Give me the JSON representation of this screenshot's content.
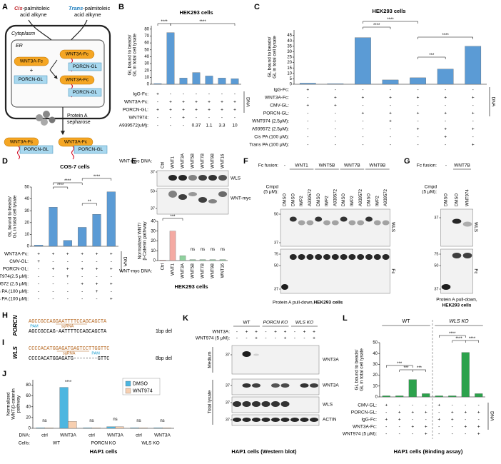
{
  "figure": {
    "A": {
      "label": "A",
      "cis": "Cis",
      "trans": "Trans",
      "pa": "-palmitoleic",
      "alkyne": "acid alkyne",
      "cytoplasm": "Cytoplasm",
      "er": "ER",
      "wnt": "WNT3A-Fc",
      "porcn": "PORCN-GL",
      "plus": "+",
      "protein_a": "Protein A",
      "sepharose": "sepharose"
    },
    "B": {
      "label": "B",
      "title": "HEK293 cells",
      "ylabel": [
        "GL bound to beads/",
        "GL in total cell lysate"
      ],
      "ylim": [
        0,
        85
      ],
      "yticks": [
        0,
        10,
        20,
        30,
        40,
        50,
        60,
        70,
        80
      ],
      "values": [
        1,
        75,
        9,
        17,
        12,
        9,
        8
      ],
      "color": "#5b9bd5",
      "rows": [
        {
          "label": "IgG-Fc:",
          "cells": [
            "+",
            "-",
            "-",
            "-",
            "-",
            "-",
            "-"
          ]
        },
        {
          "label": "WNT3A-Fc:",
          "cells": [
            "-",
            "+",
            "+",
            "+",
            "+",
            "+",
            "+"
          ]
        },
        {
          "label": "PORCN-GL:",
          "cells": [
            "+",
            "+",
            "+",
            "+",
            "+",
            "+",
            "+"
          ]
        },
        {
          "label": "WNT974:",
          "cells": [
            "-",
            "-",
            "+",
            "-",
            "-",
            "-",
            "-"
          ]
        },
        {
          "label": "A939572(uM):",
          "cells": [
            "-",
            "-",
            "-",
            "0.37",
            "1.1",
            "3.3",
            "10"
          ]
        }
      ],
      "sig": [
        "****",
        "****"
      ],
      "side": "DNA"
    },
    "C": {
      "label": "C",
      "title": "HEK293 cells",
      "ylabel": [
        "GL bound to beads/",
        "GL in total cell lysate"
      ],
      "ylim": [
        0,
        50
      ],
      "yticks": [
        0,
        5,
        10,
        15,
        20,
        25,
        30,
        35,
        40,
        45
      ],
      "values": [
        1,
        0.5,
        43,
        4,
        6,
        14,
        35
      ],
      "color": "#5b9bd5",
      "rows": [
        {
          "label": "IgG-Fc:",
          "cells": [
            "+",
            "-",
            "-",
            "-",
            "-",
            "-",
            "-"
          ]
        },
        {
          "label": "WNT3A-Fc:",
          "cells": [
            "-",
            "+",
            "+",
            "+",
            "+",
            "+",
            "+"
          ]
        },
        {
          "label": "CMV-GL:",
          "cells": [
            "+",
            "+",
            "-",
            "-",
            "-",
            "-",
            "-"
          ]
        },
        {
          "label": "PORCN-GL:",
          "cells": [
            "-",
            "-",
            "+",
            "+",
            "+",
            "+",
            "+"
          ]
        },
        {
          "label": "WNT974 (2.5μM):",
          "cells": [
            "-",
            "-",
            "-",
            "+",
            "-",
            "-",
            "-"
          ]
        },
        {
          "label": "A939572 (2.5μM):",
          "cells": [
            "-",
            "-",
            "-",
            "-",
            "+",
            "+",
            "+"
          ]
        },
        {
          "label": "Cis PA (100 μM):",
          "cells": [
            "-",
            "-",
            "-",
            "-",
            "-",
            "+",
            "-"
          ]
        },
        {
          "label": "Trans PA (100 μM):",
          "cells": [
            "-",
            "-",
            "-",
            "-",
            "-",
            "-",
            "+"
          ]
        }
      ],
      "sig": [
        "****",
        "****",
        "***",
        "****"
      ],
      "side": "DNA"
    },
    "D": {
      "label": "D",
      "title": "COS-7 cells",
      "ylabel": [
        "GL bound to beads/",
        "GL in total cell lysate"
      ],
      "ylim": [
        0,
        50
      ],
      "yticks": [
        0,
        10,
        20,
        30,
        40,
        50
      ],
      "values": [
        1,
        33,
        5,
        16,
        27,
        46
      ],
      "color": "#5b9bd5",
      "rows": [
        {
          "label": "WNT3A-Fc:",
          "cells": [
            "+",
            "+",
            "+",
            "+",
            "+",
            "+"
          ]
        },
        {
          "label": "CMV-GL:",
          "cells": [
            "+",
            "-",
            "-",
            "-",
            "-",
            "-"
          ]
        },
        {
          "label": "PORCN-GL:",
          "cells": [
            "-",
            "+",
            "+",
            "+",
            "+",
            "+"
          ]
        },
        {
          "label": "WNT974(2.5 μM):",
          "cells": [
            "-",
            "-",
            "+",
            "-",
            "-",
            "-"
          ]
        },
        {
          "label": "A939572 (2.5 μM):",
          "cells": [
            "-",
            "-",
            "-",
            "+",
            "+",
            "+"
          ]
        },
        {
          "label": "cis PA (100 μM):",
          "cells": [
            "-",
            "-",
            "-",
            "-",
            "+",
            "-"
          ]
        },
        {
          "label": "trans PA (100 μM):",
          "cells": [
            "-",
            "-",
            "-",
            "-",
            "-",
            "+"
          ]
        }
      ],
      "sig": [
        "****",
        "****",
        "**",
        "****"
      ],
      "side": "DNA"
    },
    "E": {
      "label": "E",
      "lane_title": "WNT-myc DNA:",
      "categories": [
        "Ctrl",
        "WNT1",
        "WNT3A",
        "WNT5B",
        "WNT7B",
        "WNT9B",
        "WNT16"
      ],
      "markers": [
        37,
        50,
        37
      ],
      "blots": [
        "WLS",
        "WNT-myc"
      ],
      "ylabel": [
        "Normalized WNT/",
        "β-Catenin pathway"
      ],
      "ylim": [
        0,
        40
      ],
      "yticks": [
        0,
        10,
        20,
        30,
        40
      ],
      "values": [
        0.5,
        30,
        5,
        1,
        1,
        1,
        1
      ],
      "colors": [
        "#f4aaa3",
        "#f4aaa3",
        "#8fd19e",
        "#8fd19e",
        "#8fd19e",
        "#8fd19e",
        "#8fd19e"
      ],
      "sig": [
        "***",
        "ns",
        "ns",
        "ns",
        "ns"
      ],
      "cells": "HEK293 cells"
    },
    "F": {
      "label": "F",
      "fusion_title": "Fc fusion:",
      "fusions": [
        "-",
        "WNT1",
        "WNT5B",
        "WNT7B",
        "WNT9B"
      ],
      "cmpd_title": [
        "Cmpd",
        "(5 μM):"
      ],
      "cmpd": [
        "DMSO",
        "DMSO",
        "IWP2",
        "A939572",
        "DMSO",
        "IWP2",
        "A939572",
        "DMSO",
        "IWP2",
        "A939572",
        "DMSO",
        "IWP2",
        "A939572"
      ],
      "markers": [
        50,
        37,
        75,
        50,
        37
      ],
      "blots": [
        "WLS",
        "Fc"
      ],
      "caption": "Protein A pull-down, ",
      "caption_bold": "HEK293 cells"
    },
    "G": {
      "label": "G",
      "fusion_title": "Fc fusion:",
      "fusions": [
        "-",
        "WNT7B"
      ],
      "cmpd_title": [
        "Cmpd",
        "(5 μM):"
      ],
      "cmpd": [
        "DMSO",
        "DMSO",
        "WNT974"
      ],
      "markers": [
        37,
        75,
        50,
        37
      ],
      "blots": [
        "WLS",
        "Fc"
      ],
      "caption": "Protein A pull-down,",
      "caption_bold": "HEK293 cells"
    },
    "H": {
      "label": "H",
      "gene": "PORCN",
      "wt": "AGCCGCCAGGAATTTTCCAGCAGCTA",
      "mut": "AGCCGCCAG-AATTTTCCAGCAGCTA",
      "pam": "PAM",
      "sgrna": "sgRNA",
      "del": "1bp del"
    },
    "I": {
      "label": "I",
      "gene": "WLS",
      "wt": "CCCCACATGGAGATGAGTCCTTGGTTC",
      "mut": "CCCCACATGGAGATG--------GTTC",
      "pam": "PAM",
      "sgrna": "sgRNA",
      "del": "8bp del"
    },
    "J": {
      "label": "J",
      "ylabel": [
        "Normalized",
        "WNT/β-catenin",
        "pathway"
      ],
      "ylim": [
        0,
        90
      ],
      "yticks": [
        0,
        20,
        40,
        60,
        80
      ],
      "categories": [
        "ctrl",
        "WNT3A",
        "ctrl",
        "WNT3A",
        "ctrl",
        "WNT3A"
      ],
      "series": [
        {
          "name": "DMSO",
          "color": "#4db6e0",
          "values": [
            1,
            76,
            1,
            3,
            1,
            1
          ]
        },
        {
          "name": "WNT974",
          "color": "#f7cfb0",
          "values": [
            1,
            13,
            1,
            3,
            1,
            1
          ]
        }
      ],
      "dna": "DNA:",
      "cells_title": "Cells:",
      "groups": [
        "WT",
        "PORCN KO",
        "WLS KO"
      ],
      "sig": [
        "ns",
        "****",
        "ns",
        "ns",
        "ns",
        "ns"
      ],
      "caption": "HAP1 cells"
    },
    "K": {
      "label": "K",
      "groups": [
        "WT",
        "PORCN KO",
        "WLS KO"
      ],
      "rows": [
        {
          "label": "WNT3A:",
          "cells": [
            "-",
            "+",
            "+",
            "-",
            "+",
            "+",
            "-",
            "+",
            "+"
          ]
        },
        {
          "label": "WNT974 (5 μM):",
          "cells": [
            "-",
            "-",
            "+",
            "-",
            "-",
            "+",
            "-",
            "-",
            "+"
          ]
        }
      ],
      "sections": [
        "Medium",
        "Total lysate"
      ],
      "blots": [
        "WNT3A",
        "WNT3A",
        "WLS",
        "ACTIN"
      ],
      "markers": [
        37,
        37,
        37,
        37
      ],
      "caption": "HAP1 cells (Western blot)"
    },
    "L": {
      "label": "L",
      "ylabel": [
        "GL bound to beads/",
        "GL in total cell lysate"
      ],
      "ylim": [
        0,
        50
      ],
      "yticks": [
        0,
        10,
        20,
        30,
        40,
        50
      ],
      "values": [
        1,
        1,
        16,
        3,
        1,
        1,
        41,
        3
      ],
      "color": "#2ca24c",
      "groups": [
        "WT",
        "WLS KO"
      ],
      "rows": [
        {
          "label": "CMV-GL:",
          "cells": [
            "+",
            "-",
            "-",
            "-",
            "+",
            "-",
            "-",
            "-"
          ]
        },
        {
          "label": "PORCN-GL:",
          "cells": [
            "-",
            "+",
            "+",
            "+",
            "-",
            "+",
            "+",
            "+"
          ]
        },
        {
          "label": "IgG-Fc:",
          "cells": [
            "+",
            "+",
            "-",
            "-",
            "+",
            "+",
            "-",
            "-"
          ]
        },
        {
          "label": "WNT3A-Fc:",
          "cells": [
            "-",
            "-",
            "+",
            "+",
            "-",
            "-",
            "+",
            "+"
          ]
        },
        {
          "label": "WNT974 (5 μM):",
          "cells": [
            "-",
            "-",
            "-",
            "+",
            "-",
            "-",
            "-",
            "+"
          ]
        }
      ],
      "sig": [
        "***",
        "***",
        "***",
        "****",
        "****",
        "****"
      ],
      "side": "DNA",
      "caption": "HAP1 cells (Binding assay)"
    }
  }
}
